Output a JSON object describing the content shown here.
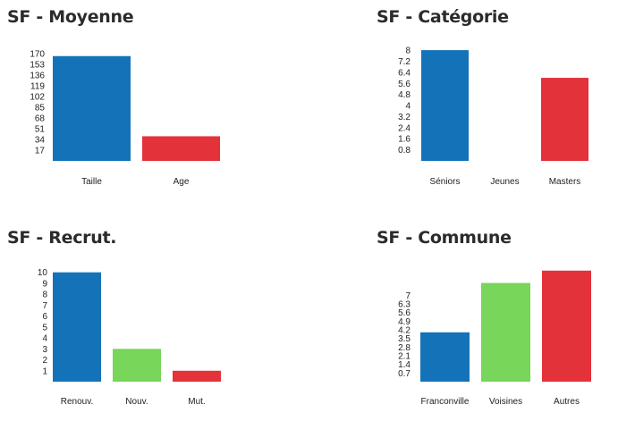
{
  "chart_data": [
    {
      "type": "bar",
      "title": "SF - Moyenne",
      "categories": [
        "Taille",
        "Age"
      ],
      "values": [
        166,
        39
      ],
      "colors": [
        "#1473b8",
        "#e3323a"
      ],
      "yticks": [
        "17",
        "34",
        "51",
        "68",
        "85",
        "102",
        "119",
        "136",
        "153",
        "170"
      ],
      "ylim": [
        0,
        177
      ],
      "xlabel": "",
      "ylabel": "",
      "grid": false
    },
    {
      "type": "bar",
      "title": "SF - Catégorie",
      "categories": [
        "Séniors",
        "Jeunes",
        "Masters"
      ],
      "values": [
        8,
        0,
        6
      ],
      "colors": [
        "#1473b8",
        "#78d65a",
        "#e3323a"
      ],
      "yticks": [
        "0.8",
        "1.6",
        "2.4",
        "3.2",
        "4",
        "4.8",
        "5.6",
        "6.4",
        "7.2",
        "8"
      ],
      "ylim": [
        0,
        8.2
      ],
      "xlabel": "",
      "ylabel": "",
      "grid": false
    },
    {
      "type": "bar",
      "title": "SF - Recrut.",
      "categories": [
        "Renouv.",
        "Nouv.",
        "Mut."
      ],
      "values": [
        10,
        3,
        1
      ],
      "colors": [
        "#1473b8",
        "#78d65a",
        "#e3323a"
      ],
      "yticks": [
        "1",
        "2",
        "3",
        "4",
        "5",
        "6",
        "7",
        "8",
        "9",
        "10"
      ],
      "ylim": [
        0,
        10.3
      ],
      "xlabel": "",
      "ylabel": "",
      "grid": false
    },
    {
      "type": "bar",
      "title": "SF - Commune",
      "categories": [
        "Franconville",
        "Voisines",
        "Autres"
      ],
      "values": [
        4,
        8,
        9
      ],
      "colors": [
        "#1473b8",
        "#78d65a",
        "#e3323a"
      ],
      "yticks": [
        "0.7",
        "1.4",
        "2.1",
        "2.8",
        "3.5",
        "4.2",
        "4.9",
        "5.6",
        "6.3",
        "7"
      ],
      "ylim": [
        0,
        9.2
      ],
      "xlabel": "",
      "ylabel": "",
      "grid": false
    }
  ]
}
